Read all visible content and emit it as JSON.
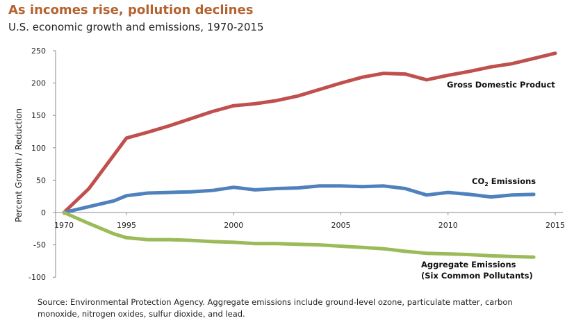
{
  "header": {
    "title": "As incomes rise, pollution declines",
    "subtitle": "U.S. economic growth and emissions, 1970-2015"
  },
  "footnote": "Source: Environmental Protection Agency. Aggregate emissions include ground-level ozone, particulate matter, carbon monoxide, nitrogen oxides, sulfur dioxide, and lead.",
  "chart_data": {
    "type": "line",
    "ylabel": "Percent Growth / Reduction",
    "xlabel": "",
    "ylim": [
      -100,
      250
    ],
    "yticks": [
      250,
      200,
      150,
      100,
      50,
      0,
      -50,
      -100
    ],
    "xticks": [
      "1970",
      "1995",
      "2000",
      "2005",
      "2010",
      "2015"
    ],
    "categories": [
      "1970",
      "1980",
      "1990",
      "1995",
      "1996",
      "1997",
      "1998",
      "1999",
      "2000",
      "2001",
      "2002",
      "2003",
      "2004",
      "2005",
      "2006",
      "2007",
      "2008",
      "2009",
      "2010",
      "2011",
      "2012",
      "2013",
      "2014",
      "2015"
    ],
    "grid": false,
    "legend": "none",
    "series": [
      {
        "name": "Gross Domestic Product",
        "color": "#c0504d",
        "values": [
          0,
          37,
          89,
          115,
          124,
          134,
          145,
          156,
          165,
          168,
          173,
          180,
          190,
          200,
          209,
          215,
          214,
          205,
          212,
          218,
          225,
          230,
          238,
          246
        ]
      },
      {
        "name": "CO2 Emissions",
        "color": "#4f81bd",
        "values": [
          0,
          9,
          18,
          26,
          30,
          31,
          32,
          34,
          39,
          35,
          37,
          38,
          41,
          41,
          40,
          41,
          37,
          27,
          31,
          28,
          24,
          27,
          28,
          null
        ]
      },
      {
        "name": "Aggregate Emissions (Six Common Pollutants)",
        "color": "#9bbb59",
        "values": [
          0,
          -17,
          -33,
          -39,
          -42,
          -42,
          -43,
          -45,
          -46,
          -48,
          -48,
          -49,
          -50,
          -52,
          -54,
          -56,
          -60,
          -63,
          -64,
          -65,
          -67,
          -68,
          -69,
          null
        ]
      }
    ],
    "annotations": {
      "gdp": "Gross Domestic Product",
      "co2_prefix": "CO",
      "co2_sub": "2",
      "co2_suffix": " Emissions",
      "agg_line1": "Aggregate Emissions",
      "agg_line2": "(Six Common Pollutants)"
    }
  }
}
